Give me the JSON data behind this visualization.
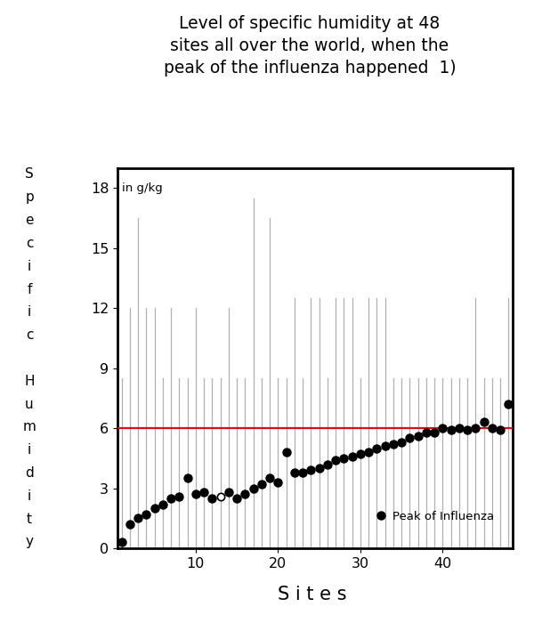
{
  "title_line1": "Level of specific humidity at 48",
  "title_line2": "sites all over the world, when the",
  "title_line3": "peak of the influenza happened  1)",
  "xlabel": "S i t e s",
  "ylabel_letters": [
    "S",
    "p",
    "e",
    "c",
    "i",
    "f",
    "i",
    "c",
    "",
    "H",
    "u",
    "m",
    "i",
    "d",
    "i",
    "t",
    "y"
  ],
  "ylabel_annotation": "in g/kg",
  "yticks": [
    0,
    3,
    6,
    9,
    12,
    15,
    18
  ],
  "xticks": [
    10,
    20,
    30,
    40
  ],
  "ylim": [
    0,
    19
  ],
  "xlim": [
    0.5,
    48.5
  ],
  "red_line_y": 6.0,
  "peak_dots": [
    0.3,
    1.2,
    1.5,
    1.7,
    2.0,
    2.2,
    2.5,
    2.6,
    3.5,
    2.7,
    2.8,
    2.5,
    2.6,
    2.8,
    2.5,
    2.7,
    3.0,
    3.2,
    3.5,
    3.3,
    4.8,
    3.8,
    3.8,
    3.9,
    4.0,
    4.2,
    4.4,
    4.5,
    4.6,
    4.7,
    4.8,
    5.0,
    5.1,
    5.2,
    5.3,
    5.5,
    5.6,
    5.8,
    5.8,
    6.0,
    5.9,
    6.0,
    5.9,
    6.0,
    6.3,
    6.0,
    5.9,
    7.2
  ],
  "open_dot_index": 12,
  "bar_tops": [
    8.5,
    12.0,
    16.5,
    12.0,
    12.0,
    8.5,
    12.0,
    8.5,
    8.5,
    12.0,
    8.5,
    8.5,
    8.5,
    12.0,
    8.5,
    8.5,
    17.5,
    8.5,
    16.5,
    8.5,
    8.5,
    12.5,
    8.5,
    12.5,
    12.5,
    8.5,
    12.5,
    12.5,
    12.5,
    8.5,
    12.5,
    12.5,
    12.5,
    8.5,
    8.5,
    8.5,
    8.5,
    8.5,
    8.5,
    8.5,
    8.5,
    8.5,
    8.5,
    12.5,
    8.5,
    8.5,
    8.5,
    12.5
  ],
  "dot_color": "#000000",
  "bar_color": "#b0b0b0",
  "red_line_color": "#ff0000",
  "legend_label": "Peak of Influenza",
  "background_color": "#ffffff",
  "title_fontsize": 13.5,
  "tick_fontsize": 11.5
}
